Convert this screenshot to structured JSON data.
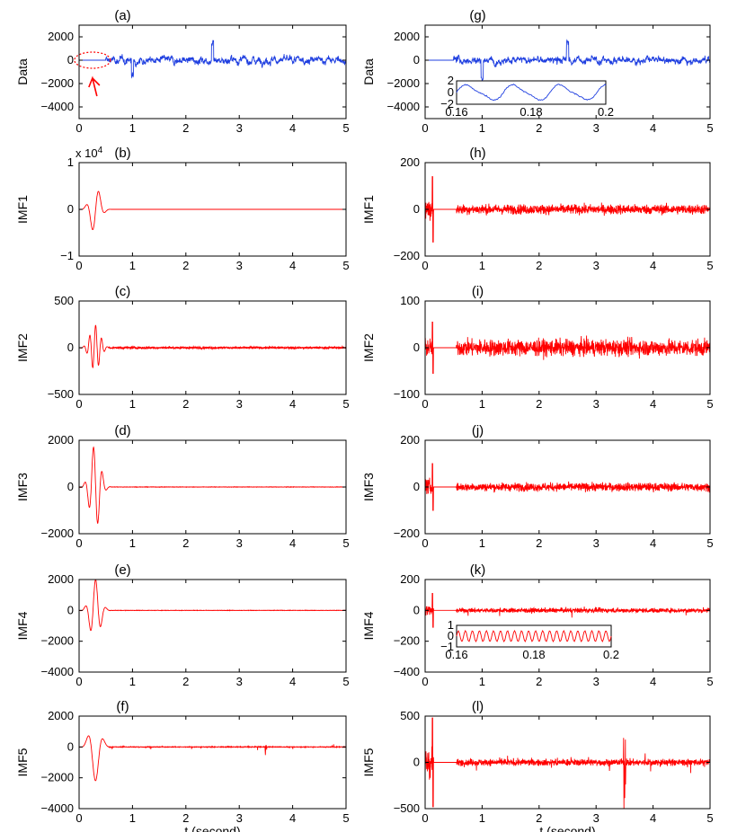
{
  "chart_data": [
    {
      "id": "a",
      "type": "line",
      "title": "(a)",
      "ylabel": "Data",
      "xlabel": "",
      "xlim": [
        0,
        5
      ],
      "ylim": [
        -5000,
        3000
      ],
      "yticks": [
        "2000",
        "0",
        "−2000",
        "−4000"
      ],
      "ytick_values": [
        2000,
        0,
        -2000,
        -4000
      ],
      "xticks": [
        "0",
        "1",
        "2",
        "3",
        "4",
        "5"
      ],
      "series": [
        {
          "color": "#1f3fe0",
          "quiet_until": 0.5,
          "amplitude": 900,
          "peak": 2400
        }
      ],
      "annotation": "dotted ellipse with arrow marking quiet segment"
    },
    {
      "id": "b",
      "type": "line",
      "title": "(b)",
      "ylabel": "IMF1",
      "xlabel": "",
      "exponent_label": "x 10^4",
      "xlim": [
        0,
        5
      ],
      "ylim": [
        -1,
        1
      ],
      "yticks": [
        "1",
        "0",
        "−1"
      ],
      "ytick_values": [
        1,
        0,
        -1
      ],
      "xticks": [
        "0",
        "1",
        "2",
        "3",
        "4",
        "5"
      ],
      "series": [
        {
          "color": "#ff0000",
          "burst_amplitude": 0.5,
          "noise": 0
        }
      ]
    },
    {
      "id": "c",
      "type": "line",
      "title": "(c)",
      "ylabel": "IMF2",
      "xlabel": "",
      "xlim": [
        0,
        5
      ],
      "ylim": [
        -500,
        500
      ],
      "yticks": [
        "500",
        "0",
        "−500"
      ],
      "ytick_values": [
        500,
        0,
        -500
      ],
      "xticks": [
        "0",
        "1",
        "2",
        "3",
        "4",
        "5"
      ],
      "series": [
        {
          "color": "#ff0000",
          "burst_amplitude": 240,
          "noise": 20
        }
      ]
    },
    {
      "id": "d",
      "type": "line",
      "title": "(d)",
      "ylabel": "IMF3",
      "xlabel": "",
      "xlim": [
        0,
        5
      ],
      "ylim": [
        -2000,
        2000
      ],
      "yticks": [
        "2000",
        "0",
        "−2000"
      ],
      "ytick_values": [
        2000,
        0,
        -2000
      ],
      "xticks": [
        "0",
        "1",
        "2",
        "3",
        "4",
        "5"
      ],
      "series": [
        {
          "color": "#ff0000",
          "burst_amplitude": 1800,
          "noise": 15
        }
      ]
    },
    {
      "id": "e",
      "type": "line",
      "title": "(e)",
      "ylabel": "IMF4",
      "xlabel": "",
      "xlim": [
        0,
        5
      ],
      "ylim": [
        -4000,
        2000
      ],
      "yticks": [
        "2000",
        "0",
        "−2000",
        "−4000"
      ],
      "ytick_values": [
        2000,
        0,
        -2000,
        -4000
      ],
      "xticks": [
        "0",
        "1",
        "2",
        "3",
        "4",
        "5"
      ],
      "series": [
        {
          "color": "#ff0000",
          "burst_amplitude": 2000,
          "noise": 20
        }
      ]
    },
    {
      "id": "f",
      "type": "line",
      "title": "(f)",
      "ylabel": "IMF5",
      "xlabel": "t (second)",
      "xlim": [
        0,
        5
      ],
      "ylim": [
        -4000,
        2000
      ],
      "yticks": [
        "2000",
        "0",
        "−2000",
        "−4000"
      ],
      "ytick_values": [
        2000,
        0,
        -2000,
        -4000
      ],
      "xticks": [
        "0",
        "1",
        "2",
        "3",
        "4",
        "5"
      ],
      "series": [
        {
          "color": "#ff0000",
          "burst_amplitude": 2200,
          "noise": 40,
          "spike_at": 3.5,
          "spike_amplitude": 400
        }
      ]
    },
    {
      "id": "g",
      "type": "line",
      "title": "(g)",
      "ylabel": "Data",
      "xlabel": "",
      "xlim": [
        0,
        5
      ],
      "ylim": [
        -5000,
        3000
      ],
      "yticks": [
        "2000",
        "0",
        "−2000",
        "−4000"
      ],
      "ytick_values": [
        2000,
        0,
        -2000,
        -4000
      ],
      "xticks": [
        "0",
        "1",
        "2",
        "3",
        "4",
        "5"
      ],
      "series": [
        {
          "color": "#1f3fe0",
          "quiet_until": 0.5,
          "amplitude": 900,
          "peak": 2400
        }
      ],
      "inset": {
        "color": "#1f3fe0",
        "xticks": [
          "0.16",
          "0.18",
          "0.2"
        ],
        "yticks": [
          "2",
          "0",
          "−2"
        ]
      }
    },
    {
      "id": "h",
      "type": "line",
      "title": "(h)",
      "ylabel": "IMF1",
      "xlabel": "",
      "xlim": [
        0,
        5
      ],
      "ylim": [
        -200,
        200
      ],
      "yticks": [
        "200",
        "0",
        "−200"
      ],
      "ytick_values": [
        200,
        0,
        -200
      ],
      "xticks": [
        "0",
        "1",
        "2",
        "3",
        "4",
        "5"
      ],
      "series": [
        {
          "color": "#ff0000",
          "spike_amplitude": 140,
          "noise": 35
        }
      ]
    },
    {
      "id": "i",
      "type": "line",
      "title": "(i)",
      "ylabel": "IMF2",
      "xlabel": "",
      "xlim": [
        0,
        5
      ],
      "ylim": [
        -100,
        100
      ],
      "yticks": [
        "100",
        "0",
        "−100"
      ],
      "ytick_values": [
        100,
        0,
        -100
      ],
      "xticks": [
        "0",
        "1",
        "2",
        "3",
        "4",
        "5"
      ],
      "series": [
        {
          "color": "#ff0000",
          "spike_amplitude": 55,
          "noise": 30
        }
      ]
    },
    {
      "id": "j",
      "type": "line",
      "title": "(j)",
      "ylabel": "IMF3",
      "xlabel": "",
      "xlim": [
        0,
        5
      ],
      "ylim": [
        -200,
        200
      ],
      "yticks": [
        "200",
        "0",
        "−200"
      ],
      "ytick_values": [
        200,
        0,
        -200
      ],
      "xticks": [
        "0",
        "1",
        "2",
        "3",
        "4",
        "5"
      ],
      "series": [
        {
          "color": "#ff0000",
          "spike_amplitude": 100,
          "noise": 30
        }
      ]
    },
    {
      "id": "k",
      "type": "line",
      "title": "(k)",
      "ylabel": "IMF4",
      "xlabel": "",
      "xlim": [
        0,
        5
      ],
      "ylim": [
        -400,
        200
      ],
      "yticks": [
        "200",
        "0",
        "−200",
        "−400"
      ],
      "ytick_values": [
        200,
        0,
        -200,
        -400
      ],
      "xticks": [
        "0",
        "1",
        "2",
        "3",
        "4",
        "5"
      ],
      "series": [
        {
          "color": "#ff0000",
          "spike_amplitude": 110,
          "noise": 25
        }
      ],
      "inset": {
        "color": "#ff0000",
        "xticks": [
          "0.16",
          "0.18",
          "0.2"
        ],
        "yticks": [
          "1",
          "0",
          "−1"
        ]
      }
    },
    {
      "id": "l",
      "type": "line",
      "title": "(l)",
      "ylabel": "IMF5",
      "xlabel": "t (second)",
      "xlim": [
        0,
        5
      ],
      "ylim": [
        -500,
        500
      ],
      "yticks": [
        "500",
        "0",
        "−500"
      ],
      "ytick_values": [
        500,
        0,
        -500
      ],
      "xticks": [
        "0",
        "1",
        "2",
        "3",
        "4",
        "5"
      ],
      "series": [
        {
          "color": "#ff0000",
          "noise": 60,
          "spike_at": 3.5,
          "spike_amplitude": 480
        }
      ]
    }
  ]
}
